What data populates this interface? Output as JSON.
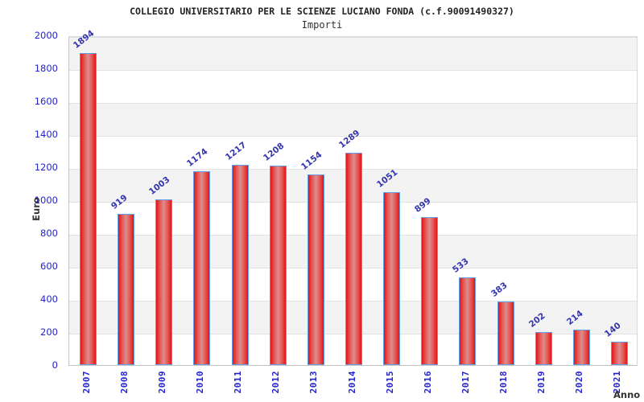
{
  "header": {
    "title": "COLLEGIO UNIVERSITARIO PER LE SCIENZE LUCIANO FONDA (c.f.90091490327)",
    "subtitle": "Importi"
  },
  "axes": {
    "ylabel": "Euro",
    "xlabel": "Anno"
  },
  "chart_data": {
    "type": "bar",
    "title": "COLLEGIO UNIVERSITARIO PER LE SCIENZE LUCIANO FONDA (c.f.90091490327)",
    "subtitle": "Importi",
    "xlabel": "Anno",
    "ylabel": "Euro",
    "categories": [
      "2007",
      "2008",
      "2009",
      "2010",
      "2011",
      "2012",
      "2013",
      "2014",
      "2015",
      "2016",
      "2017",
      "2018",
      "2019",
      "2020",
      "2021"
    ],
    "values": [
      1894,
      919,
      1003,
      1174,
      1217,
      1208,
      1154,
      1289,
      1051,
      899,
      533,
      383,
      202,
      214,
      140
    ],
    "ylim": [
      0,
      2000
    ],
    "yticks": [
      0,
      200,
      400,
      600,
      800,
      1000,
      1200,
      1400,
      1600,
      1800,
      2000
    ],
    "grid": "horizontal gridlines every 200 with alternating gray/white bands",
    "legend": "none",
    "colors": {
      "bar_fill_edge": "#e31414",
      "bar_fill_center": "#de8d8d",
      "bar_border": "#5e9fe6",
      "value_label": "#3535ad",
      "tick_label": "#2323cc",
      "band_gray": "#f3f3f3",
      "gridline": "#e2e2e2",
      "title_text": "#222222"
    }
  }
}
